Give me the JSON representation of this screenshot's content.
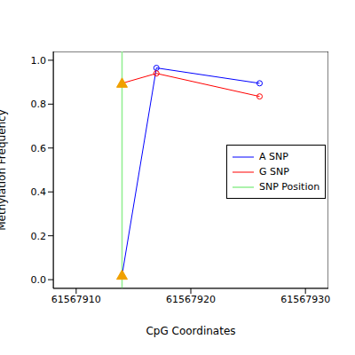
{
  "chart_data": {
    "type": "line",
    "x_label": "CpG Coordinates",
    "y_label": "Methylation Frequency",
    "xlim": [
      61567908,
      61567932
    ],
    "xticks": [
      61567910,
      61567920,
      61567930
    ],
    "ylim": [
      -0.04,
      1.04
    ],
    "yticks": [
      {
        "value": 0,
        "label": "0.0"
      },
      {
        "value": 0.2,
        "label": "0.2"
      },
      {
        "value": 0.4,
        "label": "0.4"
      },
      {
        "value": 0.6,
        "label": "0.6"
      },
      {
        "value": 0.8,
        "label": "0.8"
      },
      {
        "value": 1,
        "label": "1.0"
      }
    ],
    "series": [
      {
        "name": "A SNP",
        "color": "#0000ff",
        "marker": "circle",
        "x": [
          61567914,
          61567917,
          61567926
        ],
        "values": [
          0.02,
          0.965,
          0.895
        ]
      },
      {
        "name": "G SNP",
        "color": "#ff0000",
        "marker": "circle",
        "x": [
          61567914,
          61567917,
          61567926
        ],
        "values": [
          0.895,
          0.94,
          0.835
        ]
      }
    ],
    "snp_position": {
      "name": "SNP Position",
      "color": "#90ee90",
      "x": 61567914
    },
    "legend": "right"
  }
}
